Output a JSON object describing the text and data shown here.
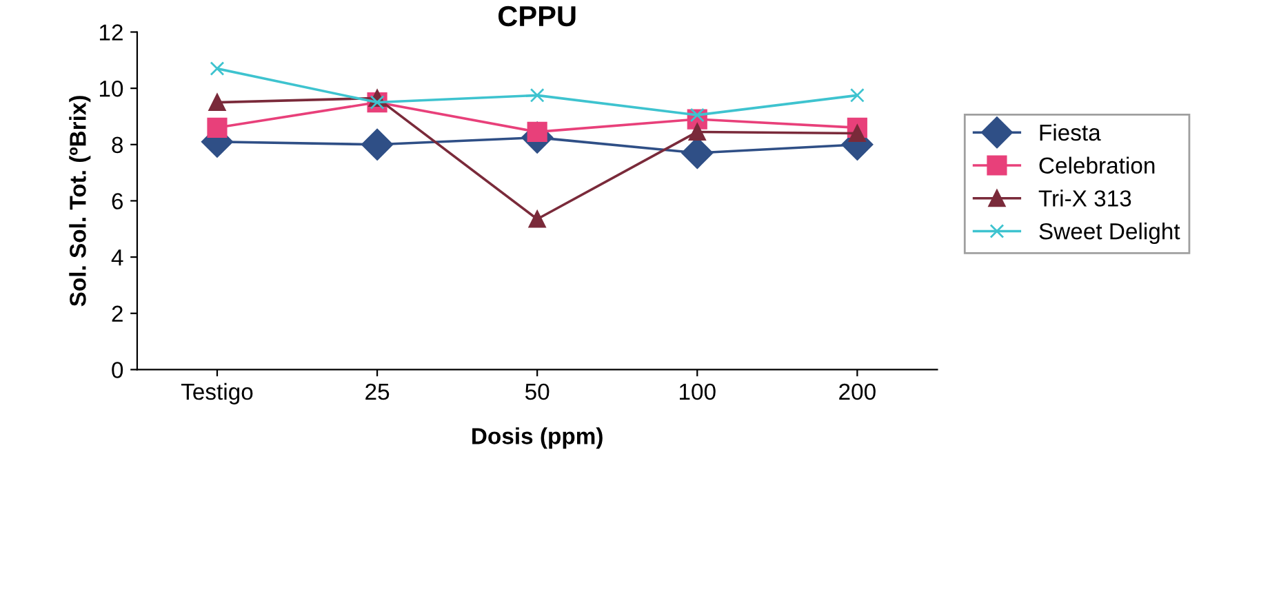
{
  "chart_data": {
    "type": "line",
    "title": "CPPU",
    "xlabel": "Dosis (ppm)",
    "ylabel": "Sol. Sol. Tot. (ºBrix)",
    "categories": [
      "Testigo",
      "25",
      "50",
      "100",
      "200"
    ],
    "series": [
      {
        "name": "Fiesta",
        "color": "#2f4f86",
        "marker": "diamond",
        "values": [
          8.1,
          8.0,
          8.25,
          7.7,
          8.0
        ]
      },
      {
        "name": "Celebration",
        "color": "#e8407a",
        "marker": "square",
        "values": [
          8.6,
          9.5,
          8.45,
          8.9,
          8.6
        ]
      },
      {
        "name": "Tri-X 313",
        "color": "#7a2a3a",
        "marker": "triangle",
        "values": [
          9.5,
          9.65,
          5.35,
          8.45,
          8.4
        ]
      },
      {
        "name": "Sweet Delight",
        "color": "#3ec3cf",
        "marker": "cross",
        "values": [
          10.7,
          9.5,
          9.75,
          9.05,
          9.75
        ]
      }
    ],
    "ylim": [
      0,
      12
    ],
    "yticks": [
      0,
      2,
      4,
      6,
      8,
      10,
      12
    ],
    "grid": false,
    "legend": "right"
  }
}
